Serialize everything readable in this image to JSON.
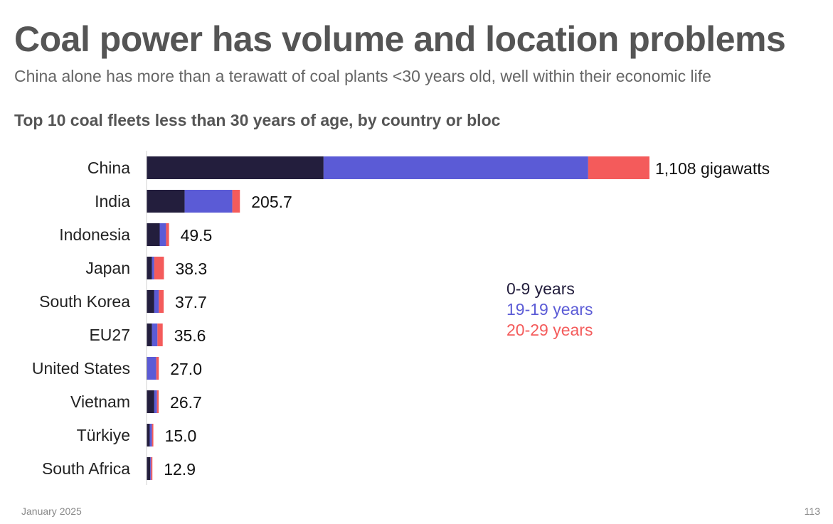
{
  "header": {
    "title": "Coal power has volume and location problems",
    "subtitle": "China alone has more than a terawatt of coal plants <30 years old, well within their economic life"
  },
  "footer": {
    "date": "January 2025",
    "page_number": "113"
  },
  "colors": {
    "series_0": "#231e3d",
    "series_1": "#5b5bd6",
    "series_2": "#f45b5b",
    "axis": "#d0d0d0"
  },
  "chart_data": {
    "type": "bar",
    "orientation": "horizontal",
    "stacked": true,
    "title": "Top 10 coal fleets less than 30 years of age, by country or bloc",
    "xlabel": "",
    "ylabel": "",
    "xlim": [
      0,
      1108
    ],
    "categories": [
      "China",
      "India",
      "Indonesia",
      "Japan",
      "South Korea",
      "EU27",
      "United States",
      "Vietnam",
      "Türkiye",
      "South Africa"
    ],
    "series": [
      {
        "name": "0-9 years",
        "values": [
          390,
          84,
          29,
          12,
          17,
          12,
          1.5,
          17,
          7,
          8
        ]
      },
      {
        "name": "19-19 years",
        "values": [
          583,
          105,
          14,
          5,
          10,
          12,
          20,
          6,
          5,
          2
        ]
      },
      {
        "name": "20-29 years",
        "values": [
          135,
          16.7,
          6.5,
          21.3,
          10.7,
          11.6,
          5.5,
          3.7,
          3,
          2.9
        ]
      }
    ],
    "totals": [
      1108,
      205.7,
      49.5,
      38.3,
      37.7,
      35.6,
      27.0,
      26.7,
      15.0,
      12.9
    ],
    "total_labels": [
      "1,108 gigawatts",
      "205.7",
      "49.5",
      "38.3",
      "37.7",
      "35.6",
      "27.0",
      "26.7",
      "15.0",
      "12.9"
    ],
    "legend": [
      "0-9 years",
      "19-19 years",
      "20-29 years"
    ],
    "legend_position": "center-right"
  }
}
